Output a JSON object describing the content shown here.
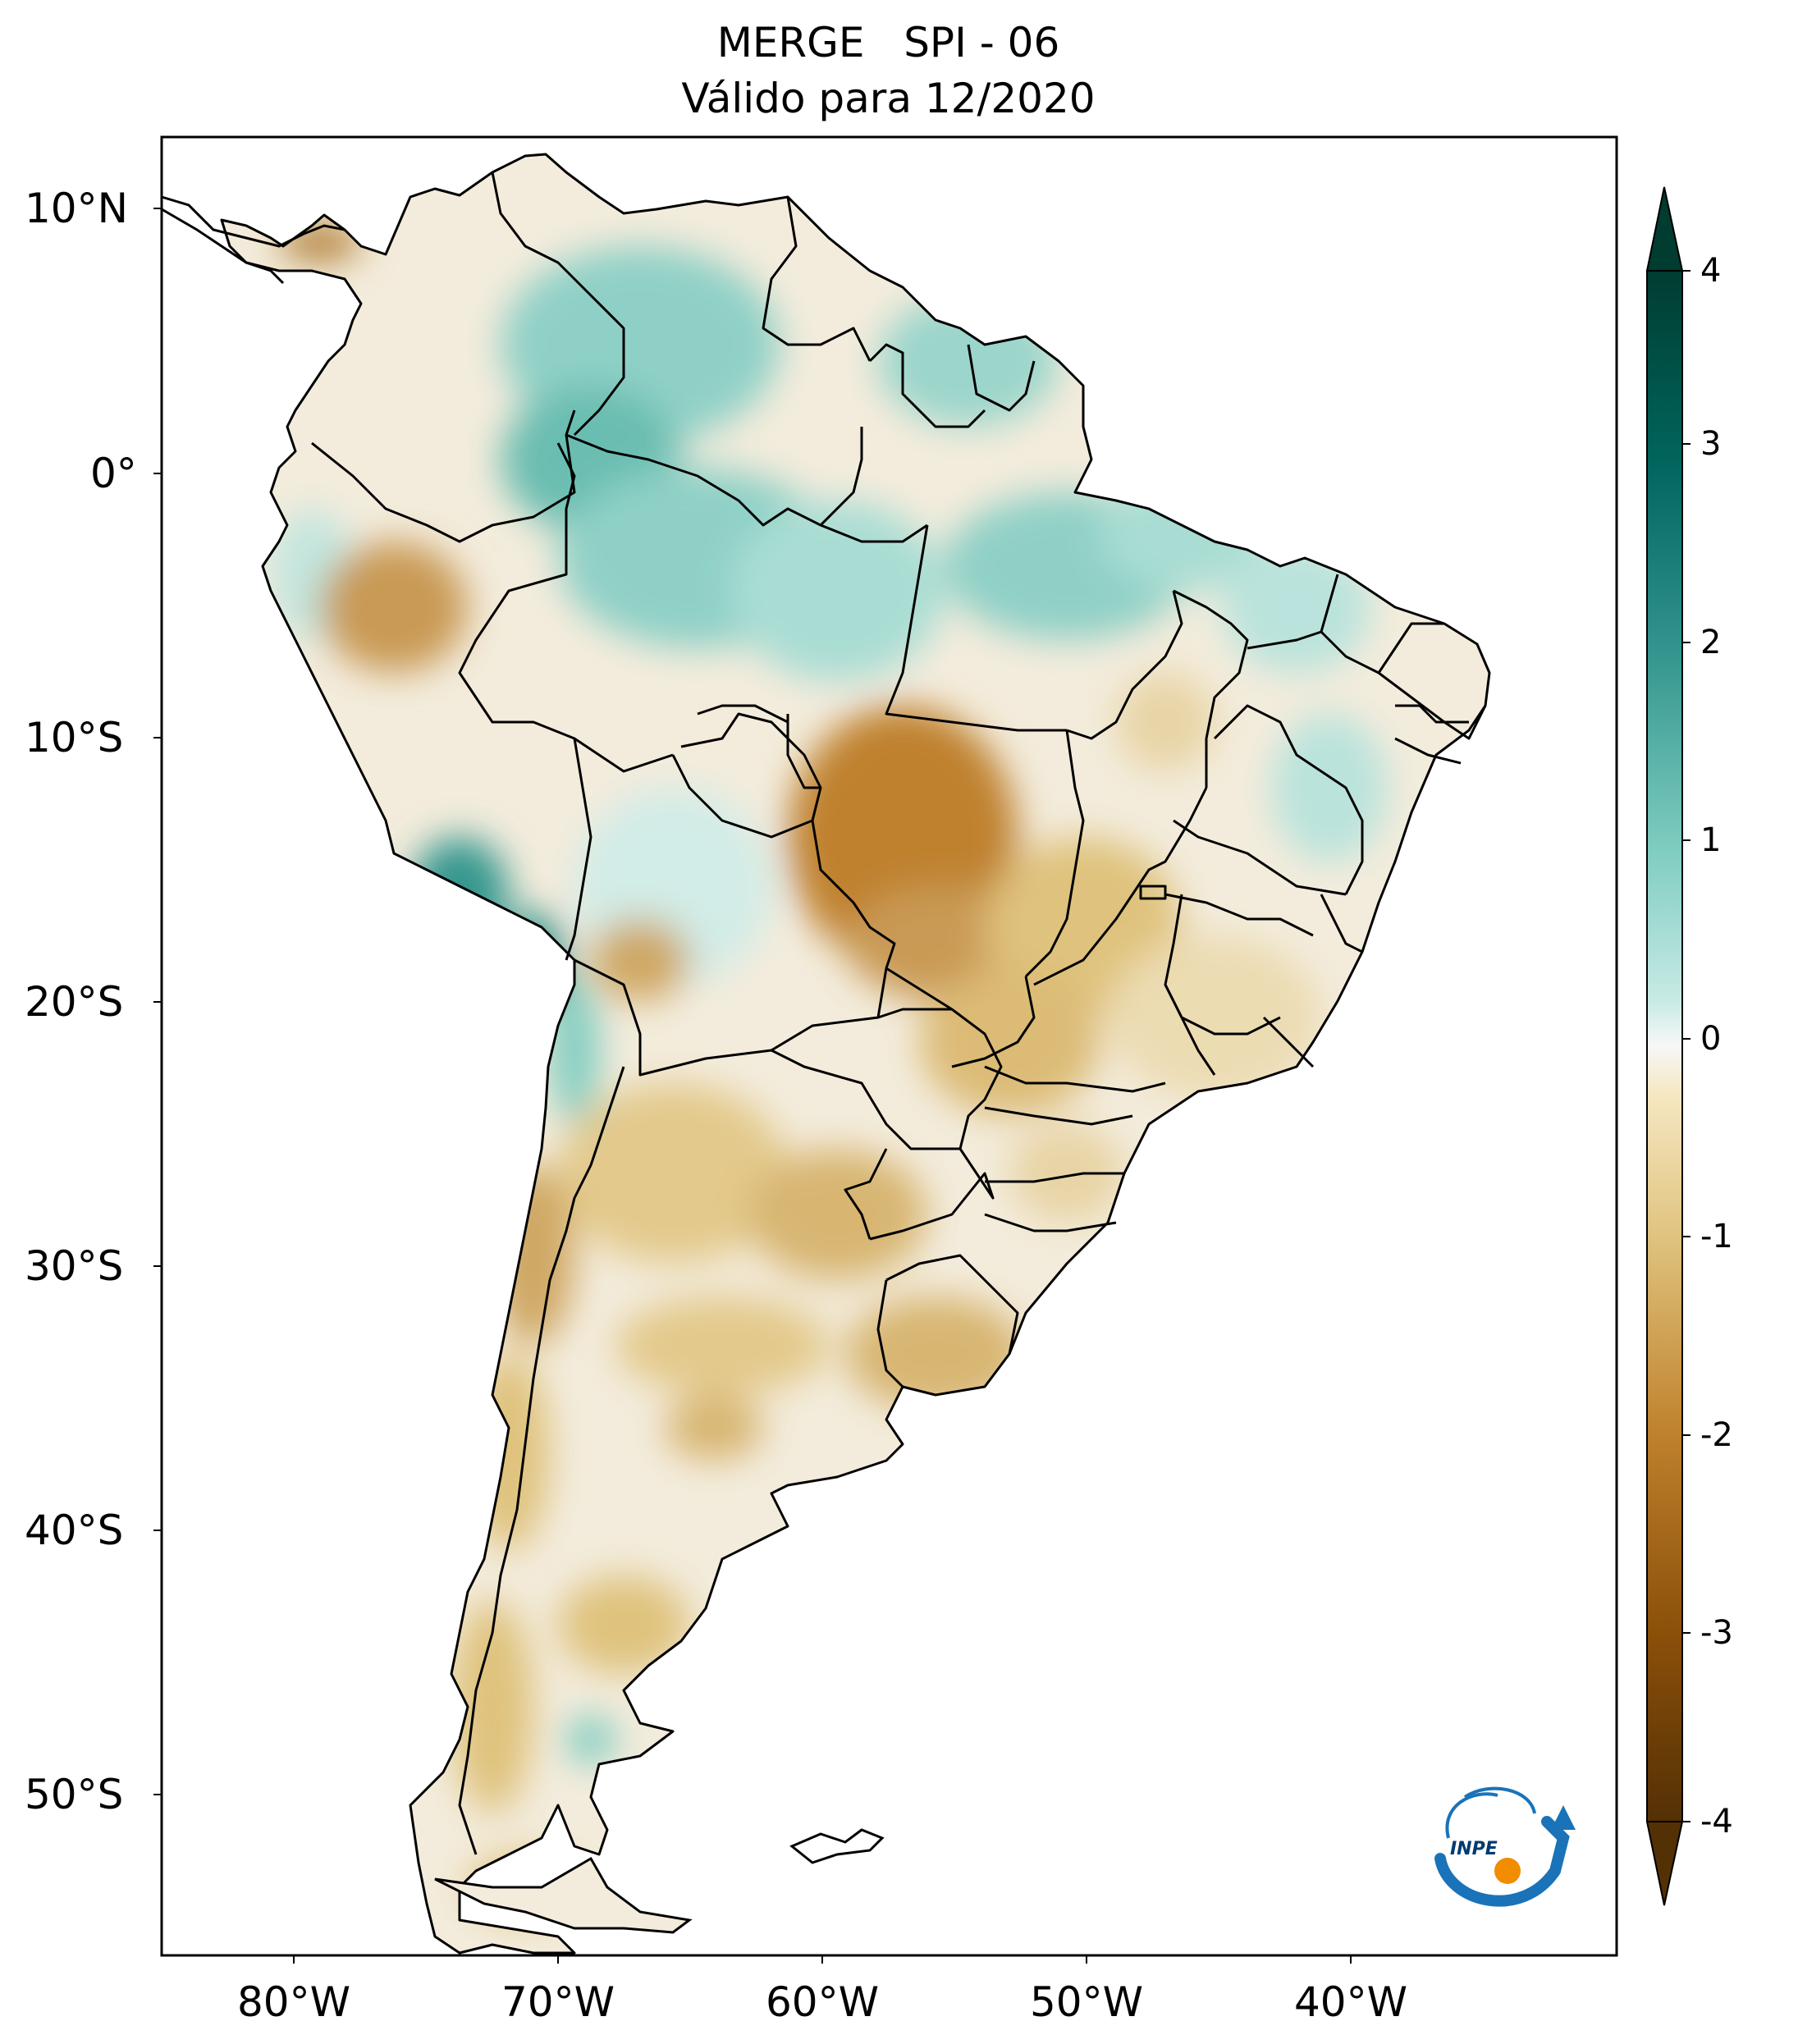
{
  "title": {
    "line1": "MERGE   SPI - 06",
    "line2": "Válido para 12/2020"
  },
  "map": {
    "region": "South America",
    "extent": {
      "lon": [
        -85,
        -30
      ],
      "lat": [
        -56,
        13
      ]
    },
    "lat_labels": [
      "10°N",
      "0°",
      "10°S",
      "20°S",
      "30°S",
      "40°S",
      "50°S"
    ],
    "lon_labels": [
      "80°W",
      "70°W",
      "60°W",
      "50°W",
      "40°W"
    ],
    "boundaries": [
      "countries",
      "brazilian-states"
    ]
  },
  "colorbar": {
    "colormap": "BrBG",
    "range": [
      -4,
      4
    ],
    "extend": "both",
    "ticks": [
      "4",
      "3",
      "2",
      "1",
      "0",
      "-1",
      "-2",
      "-3",
      "-4"
    ],
    "colors": {
      "min": "#543005",
      "dry2": "#a8701f",
      "dry1": "#dfc27d",
      "neutral": "#f7f7f7",
      "wet1": "#80cdc1",
      "wet2": "#35978f",
      "max": "#003c30"
    }
  },
  "logo": {
    "text": "INPE"
  }
}
